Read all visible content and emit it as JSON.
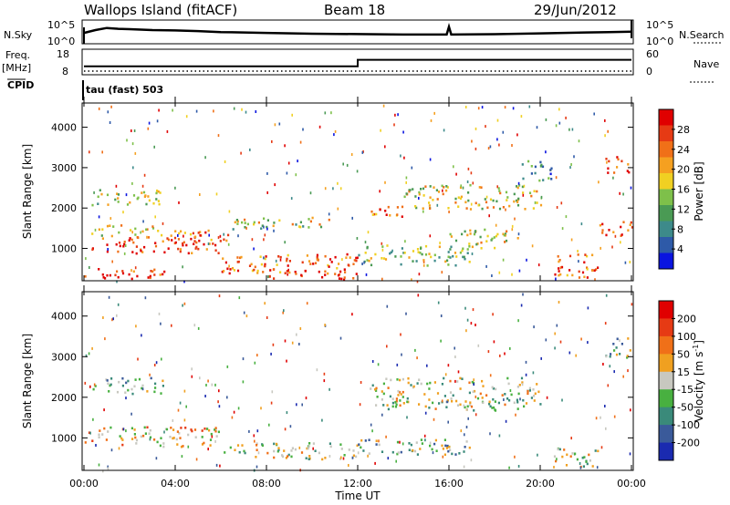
{
  "header": {
    "station": "Wallops Island (fitACF)",
    "beam": "Beam 18",
    "date": "29/Jun/2012"
  },
  "chart_data": [
    {
      "type": "line",
      "panel": "noise",
      "left_label": "N.Sky",
      "right_label": "N.Search",
      "left_ticks": [
        "10^5",
        "10^0"
      ],
      "right_ticks": [
        "10^5",
        "10^0"
      ],
      "x_range_hours": [
        0,
        24
      ],
      "series": [
        {
          "values_hours": [
            0.0,
            0.5,
            1.0,
            1.5,
            2.0,
            3.0,
            4.0,
            5.0,
            6.0,
            8.0,
            10.0,
            12.0,
            14.0,
            15.9,
            16.0,
            16.1,
            18.0,
            20.0,
            22.0,
            23.0,
            24.0
          ],
          "level": [
            0.55,
            0.72,
            0.85,
            0.8,
            0.78,
            0.72,
            0.7,
            0.66,
            0.6,
            0.55,
            0.5,
            0.48,
            0.45,
            0.45,
            0.92,
            0.45,
            0.47,
            0.52,
            0.58,
            0.6,
            0.62
          ]
        }
      ]
    },
    {
      "type": "line",
      "panel": "frequency",
      "left_label": "Freq.",
      "left_unit": "[MHz]",
      "right_label": "Nave",
      "left_ticks": [
        "18",
        "8"
      ],
      "right_ticks": [
        "60",
        "0"
      ],
      "cpid_label": "CPID",
      "mode_text": "tau (fast) 503",
      "frequency_steps": [
        {
          "from_hour": 0,
          "to_hour": 12,
          "mhz": 11
        },
        {
          "from_hour": 12,
          "to_hour": 24,
          "mhz": 14
        }
      ],
      "nave_level": 5
    },
    {
      "type": "heatmap",
      "panel": "power",
      "ylabel": "Slant Range [km]",
      "yticks": [
        "1000",
        "2000",
        "3000",
        "4000"
      ],
      "ylim": [
        200,
        4600
      ],
      "xticks": [
        "00:00",
        "04:00",
        "08:00",
        "12:00",
        "16:00",
        "20:00",
        "00:00"
      ],
      "colorbar_label": "Power [dB]",
      "colorbar_ticks": [
        "4",
        "8",
        "12",
        "16",
        "20",
        "24",
        "28"
      ],
      "colorbar_colors": [
        "#0a14e0",
        "#2e5aa8",
        "#3d8a8a",
        "#4a9a54",
        "#7ec04a",
        "#f0d022",
        "#f5a020",
        "#f07018",
        "#e63a14",
        "#e00000"
      ],
      "bands": [
        {
          "h0": 0.0,
          "h1": 3.5,
          "r0": 250,
          "r1": 550,
          "level": 0.9
        },
        {
          "h0": 0.3,
          "h1": 6.0,
          "r0": 900,
          "r1": 1300,
          "level": 0.85
        },
        {
          "h0": 6.0,
          "h1": 12.0,
          "r0": 400,
          "r1": 900,
          "level": 0.78
        },
        {
          "h0": 8.0,
          "h1": 12.0,
          "r0": 250,
          "r1": 500,
          "level": 0.95
        },
        {
          "h0": 0.3,
          "h1": 3.0,
          "r0": 1300,
          "r1": 1600,
          "level": 0.55
        },
        {
          "h0": 0.3,
          "h1": 3.5,
          "r0": 2100,
          "r1": 2500,
          "level": 0.45
        },
        {
          "h0": 3.0,
          "h1": 6.5,
          "r0": 1200,
          "r1": 1500,
          "level": 0.8
        },
        {
          "h0": 6.5,
          "h1": 11.0,
          "r0": 1500,
          "r1": 1800,
          "level": 0.5
        },
        {
          "h0": 12.0,
          "h1": 17.0,
          "r0": 600,
          "r1": 1100,
          "level": 0.45
        },
        {
          "h0": 12.5,
          "h1": 14.0,
          "r0": 1700,
          "r1": 2100,
          "level": 0.75
        },
        {
          "h0": 14.0,
          "h1": 20.0,
          "r0": 2000,
          "r1": 2600,
          "level": 0.55
        },
        {
          "h0": 16.0,
          "h1": 19.0,
          "r0": 1000,
          "r1": 1500,
          "level": 0.5
        },
        {
          "h0": 20.5,
          "h1": 22.5,
          "r0": 300,
          "r1": 900,
          "level": 0.82
        },
        {
          "h0": 22.5,
          "h1": 24.0,
          "r0": 1300,
          "r1": 1700,
          "level": 0.85
        },
        {
          "h0": 22.8,
          "h1": 24.0,
          "r0": 2900,
          "r1": 3300,
          "level": 0.9
        },
        {
          "h0": 19.0,
          "h1": 20.5,
          "r0": 2700,
          "r1": 3200,
          "level": 0.3
        }
      ]
    },
    {
      "type": "heatmap",
      "panel": "velocity",
      "ylabel": "Slant Range [km]",
      "yticks": [
        "1000",
        "2000",
        "3000",
        "4000"
      ],
      "ylim": [
        200,
        4600
      ],
      "xticks": [
        "00:00",
        "04:00",
        "08:00",
        "12:00",
        "16:00",
        "20:00",
        "00:00"
      ],
      "xlabel": "Time UT",
      "colorbar_label": "Velocity [m s",
      "colorbar_sup": "-1",
      "colorbar_ticks": [
        "200",
        "100",
        "50",
        "15",
        "-15",
        "-50",
        "-100",
        "-200"
      ],
      "colorbar_colors": [
        "#1a2ab0",
        "#3a5a9a",
        "#3a8a7a",
        "#48b040",
        "#c8c8c0",
        "#f0a020",
        "#f07018",
        "#e63a14",
        "#e00000"
      ],
      "bands": [
        {
          "h0": 0.0,
          "h1": 6.0,
          "r0": 800,
          "r1": 1300,
          "level": 0.6
        },
        {
          "h0": 6.0,
          "h1": 12.0,
          "r0": 500,
          "r1": 900,
          "level": 0.5
        },
        {
          "h0": 12.0,
          "h1": 17.0,
          "r0": 600,
          "r1": 1000,
          "level": 0.4
        },
        {
          "h0": 12.5,
          "h1": 20.0,
          "r0": 1700,
          "r1": 2500,
          "level": 0.45
        },
        {
          "h0": 20.5,
          "h1": 22.5,
          "r0": 300,
          "r1": 800,
          "level": 0.5
        },
        {
          "h0": 0.3,
          "h1": 3.5,
          "r0": 2100,
          "r1": 2500,
          "level": 0.35
        },
        {
          "h0": 22.8,
          "h1": 24.0,
          "r0": 3000,
          "r1": 3500,
          "level": 0.35
        }
      ]
    }
  ]
}
